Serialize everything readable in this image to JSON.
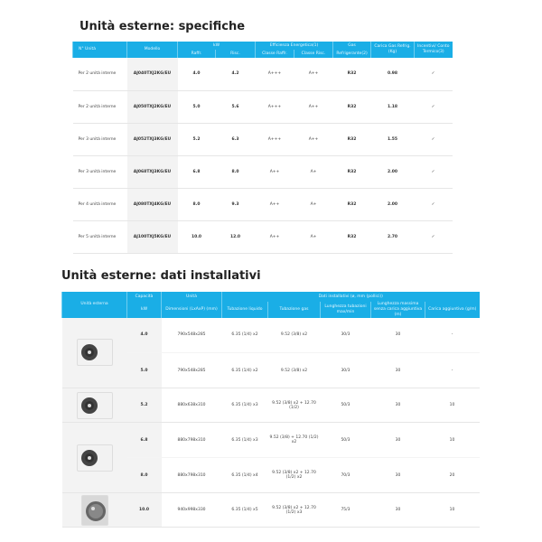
{
  "spec": {
    "title": "Unità esterne: specifiche",
    "headers": {
      "units": "N° Unità",
      "model": "Modello",
      "kw": "kW",
      "cool": "Raffr.",
      "heat": "Risc.",
      "eff": "Efficienza Energetica(1)",
      "cool_class": "Classe Raffr.",
      "heat_class": "Classe Risc.",
      "gas": "Gas",
      "refrigerant": "Refrigerante(2)",
      "charge": "Carica Gas Refrig. (Kg)",
      "incentive": "Incentivi/ Conto Termico(3)"
    },
    "rows": [
      {
        "units": "Per 2 unità interne",
        "model": "AJ040TXJ2KG/EU",
        "cool": "4.0",
        "heat": "4.2",
        "cc": "A+++",
        "hc": "A++",
        "gas": "R32",
        "charge": "0.98",
        "inc": "✓"
      },
      {
        "units": "Per 2 unità interne",
        "model": "AJ050TXJ2KG/EU",
        "cool": "5.0",
        "heat": "5.6",
        "cc": "A+++",
        "hc": "A++",
        "gas": "R32",
        "charge": "1.18",
        "inc": "✓"
      },
      {
        "units": "Per 3 unità interne",
        "model": "AJ052TXJ3KG/EU",
        "cool": "5.2",
        "heat": "6.3",
        "cc": "A+++",
        "hc": "A++",
        "gas": "R32",
        "charge": "1.55",
        "inc": "✓"
      },
      {
        "units": "Per 3 unità interne",
        "model": "AJ068TXJ3KG/EU",
        "cool": "6.8",
        "heat": "8.0",
        "cc": "A++",
        "hc": "A+",
        "gas": "R32",
        "charge": "2.00",
        "inc": "✓"
      },
      {
        "units": "Per 4 unità interne",
        "model": "AJ080TXJ4KG/EU",
        "cool": "8.0",
        "heat": "9.3",
        "cc": "A++",
        "hc": "A+",
        "gas": "R32",
        "charge": "2.00",
        "inc": "✓"
      },
      {
        "units": "Per 5 unità interne",
        "model": "AJ100TXJ5KG/EU",
        "cool": "10.0",
        "heat": "12.0",
        "cc": "A++",
        "hc": "A+",
        "gas": "R32",
        "charge": "2.70",
        "inc": "✓"
      }
    ]
  },
  "install": {
    "title": "Unità esterne: dati installativi",
    "headers": {
      "unit": "Unità esterna",
      "capacity": "Capacità",
      "kw": "kW",
      "unita": "Unità",
      "dims": "Dimensioni (LxAxP) (mm)",
      "data": "Dati installativi (ø, mm (pollici))",
      "liquid": "Tubazione liquido",
      "gasline": "Tubazione gas",
      "length": "Lunghezza tubazioni max/min",
      "maxlen": "Lunghezza massima senza carica aggiuntiva (m)",
      "extra": "Carica aggiuntiva (g/m)"
    },
    "rows": [
      {
        "cap": "4.0",
        "dims": "790x548x285",
        "liq": "6.35 (1/4) x2",
        "gas": "9.52 (3/8) x2",
        "len": "30/3",
        "max": "30",
        "extra": "-"
      },
      {
        "cap": "5.0",
        "dims": "790x548x285",
        "liq": "6.35 (1/4) x2",
        "gas": "9.52 (3/8) x2",
        "len": "30/3",
        "max": "30",
        "extra": "-"
      },
      {
        "cap": "5.2",
        "dims": "880x638x310",
        "liq": "6.35 (1/4) x3",
        "gas": "9.52 (3/8) x2 + 12.70 (1/2)",
        "len": "50/3",
        "max": "30",
        "extra": "10"
      },
      {
        "cap": "6.8",
        "dims": "880x798x310",
        "liq": "6.35 (1/4) x3",
        "gas": "9.52 (3/8) + 12.70 (1/2) x2",
        "len": "50/3",
        "max": "30",
        "extra": "10"
      },
      {
        "cap": "8.0",
        "dims": "880x798x310",
        "liq": "6.35 (1/4) x4",
        "gas": "9.52 (3/8) x2 + 12.70 (1/2) x2",
        "len": "70/3",
        "max": "30",
        "extra": "20"
      },
      {
        "cap": "10.0",
        "dims": "940x998x330",
        "liq": "6.35 (1/4) x5",
        "gas": "9.52 (3/8) x2 + 12.70 (1/2) x3",
        "len": "75/3",
        "max": "30",
        "extra": "10"
      }
    ]
  },
  "colors": {
    "header": "#1aaee6"
  }
}
